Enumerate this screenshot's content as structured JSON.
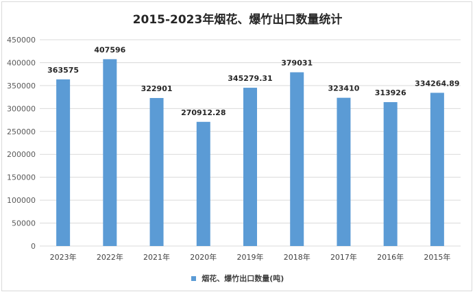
{
  "chart_data": {
    "type": "bar",
    "title": "2015-2023年烟花、爆竹出口数量统计",
    "categories": [
      "2023年",
      "2022年",
      "2021年",
      "2020年",
      "2019年",
      "2018年",
      "2017年",
      "2016年",
      "2015年"
    ],
    "series": [
      {
        "name": "烟花、爆竹出口数量(吨)",
        "values": [
          363575,
          407596,
          322901,
          270912.28,
          345279.31,
          379031,
          323410,
          313926,
          334264.89
        ],
        "value_labels": [
          "363575",
          "407596",
          "322901",
          "270912.28",
          "345279.31",
          "379031",
          "323410",
          "313926",
          "334264.89"
        ]
      }
    ],
    "yticks": [
      "0",
      "50000",
      "100000",
      "150000",
      "200000",
      "250000",
      "300000",
      "350000",
      "400000",
      "450000"
    ],
    "ylim": [
      0,
      450000
    ],
    "grid": true,
    "legend": "bottom",
    "bar_color": "#5b9bd5",
    "grid_color": "#d9d9d9"
  }
}
